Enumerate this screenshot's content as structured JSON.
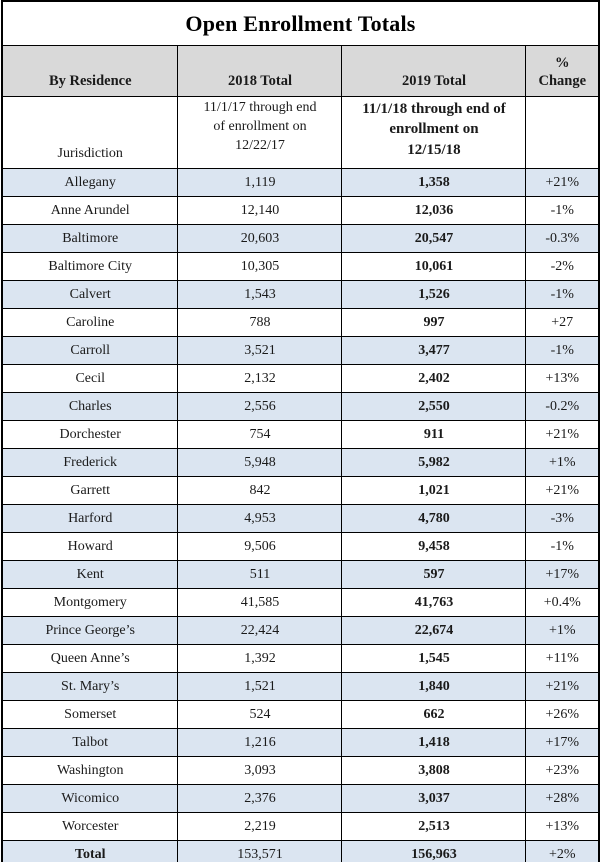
{
  "title": "Open Enrollment Totals",
  "columns": {
    "residence": "By Residence",
    "y2018": "2018 Total",
    "y2019": "2019 Total",
    "change": "%\nChange"
  },
  "subheader": {
    "jurisdiction": "Jurisdiction",
    "period_2018": "11/1/17 through end\nof enrollment on\n12/22/17",
    "period_2019": "11/1/18 through end of\nenrollment on\n12/15/18"
  },
  "rows": [
    {
      "jurisdiction": "Allegany",
      "total_2018": "1,119",
      "total_2019": "1,358",
      "change": "+21%"
    },
    {
      "jurisdiction": "Anne Arundel",
      "total_2018": "12,140",
      "total_2019": "12,036",
      "change": "-1%"
    },
    {
      "jurisdiction": "Baltimore",
      "total_2018": "20,603",
      "total_2019": "20,547",
      "change": "-0.3%"
    },
    {
      "jurisdiction": "Baltimore City",
      "total_2018": "10,305",
      "total_2019": "10,061",
      "change": "-2%"
    },
    {
      "jurisdiction": "Calvert",
      "total_2018": "1,543",
      "total_2019": "1,526",
      "change": "-1%"
    },
    {
      "jurisdiction": "Caroline",
      "total_2018": "788",
      "total_2019": "997",
      "change": "+27"
    },
    {
      "jurisdiction": "Carroll",
      "total_2018": "3,521",
      "total_2019": "3,477",
      "change": "-1%"
    },
    {
      "jurisdiction": "Cecil",
      "total_2018": "2,132",
      "total_2019": "2,402",
      "change": "+13%"
    },
    {
      "jurisdiction": "Charles",
      "total_2018": "2,556",
      "total_2019": "2,550",
      "change": "-0.2%"
    },
    {
      "jurisdiction": "Dorchester",
      "total_2018": "754",
      "total_2019": "911",
      "change": "+21%"
    },
    {
      "jurisdiction": "Frederick",
      "total_2018": "5,948",
      "total_2019": "5,982",
      "change": "+1%"
    },
    {
      "jurisdiction": "Garrett",
      "total_2018": "842",
      "total_2019": "1,021",
      "change": "+21%"
    },
    {
      "jurisdiction": "Harford",
      "total_2018": "4,953",
      "total_2019": "4,780",
      "change": "-3%"
    },
    {
      "jurisdiction": "Howard",
      "total_2018": "9,506",
      "total_2019": "9,458",
      "change": "-1%"
    },
    {
      "jurisdiction": "Kent",
      "total_2018": "511",
      "total_2019": "597",
      "change": "+17%"
    },
    {
      "jurisdiction": "Montgomery",
      "total_2018": "41,585",
      "total_2019": "41,763",
      "change": "+0.4%"
    },
    {
      "jurisdiction": "Prince George’s",
      "total_2018": "22,424",
      "total_2019": "22,674",
      "change": "+1%"
    },
    {
      "jurisdiction": "Queen Anne’s",
      "total_2018": "1,392",
      "total_2019": "1,545",
      "change": "+11%"
    },
    {
      "jurisdiction": "St. Mary’s",
      "total_2018": "1,521",
      "total_2019": "1,840",
      "change": "+21%"
    },
    {
      "jurisdiction": "Somerset",
      "total_2018": "524",
      "total_2019": "662",
      "change": "+26%"
    },
    {
      "jurisdiction": "Talbot",
      "total_2018": "1,216",
      "total_2019": "1,418",
      "change": "+17%"
    },
    {
      "jurisdiction": "Washington",
      "total_2018": "3,093",
      "total_2019": "3,808",
      "change": "+23%"
    },
    {
      "jurisdiction": "Wicomico",
      "total_2018": "2,376",
      "total_2019": "3,037",
      "change": "+28%"
    },
    {
      "jurisdiction": "Worcester",
      "total_2018": "2,219",
      "total_2019": "2,513",
      "change": "+13%"
    }
  ],
  "total_row": {
    "label": "Total",
    "total_2018": "153,571",
    "total_2019": "156,963",
    "change": "+2%"
  },
  "colors": {
    "stripe_bg": "#dbe5f1",
    "header_bg": "#d9d9d9",
    "border": "#000000"
  }
}
